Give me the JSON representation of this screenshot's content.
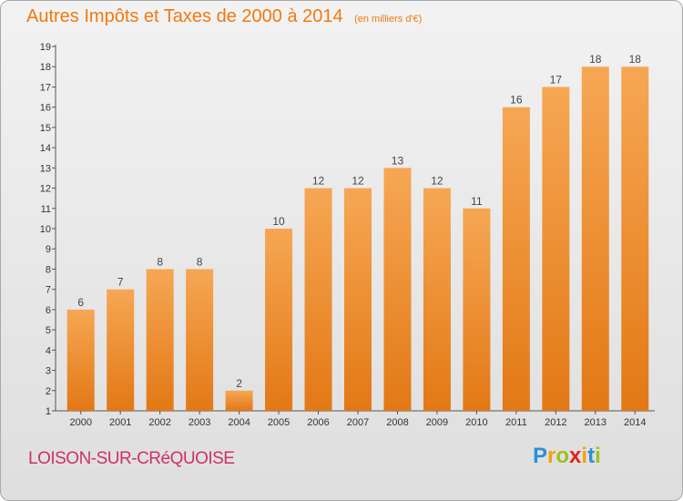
{
  "title": "Autres Impôts et Taxes de 2000 à 2014",
  "unit_note": "(en milliers d'€)",
  "city": "LOISON-SUR-CRéQUOISE",
  "brand": {
    "letters": [
      "P",
      "r",
      "o",
      "x",
      "i",
      "t",
      "i"
    ],
    "colors": [
      "#2b8fd8",
      "#f4a300",
      "#9bc31a",
      "#e2231a",
      "#f4a300",
      "#2b8fd8",
      "#9bc31a"
    ]
  },
  "colors": {
    "title": "#f07a10",
    "city": "#d0306a",
    "bar_top": "#f6a754",
    "bar_bottom": "#e37815",
    "axis_text": "#333333"
  },
  "chart_data": {
    "type": "bar",
    "categories": [
      "2000",
      "2001",
      "2002",
      "2003",
      "2004",
      "2005",
      "2006",
      "2007",
      "2008",
      "2009",
      "2010",
      "2011",
      "2012",
      "2013",
      "2014"
    ],
    "values": [
      6,
      7,
      8,
      8,
      2,
      10,
      12,
      12,
      13,
      12,
      11,
      16,
      17,
      18,
      18
    ],
    "ylim": [
      1,
      19
    ],
    "yticks": [
      1,
      2,
      3,
      4,
      5,
      6,
      7,
      8,
      9,
      10,
      11,
      12,
      13,
      14,
      15,
      16,
      17,
      18,
      19
    ],
    "grid": false,
    "legend": "none"
  }
}
